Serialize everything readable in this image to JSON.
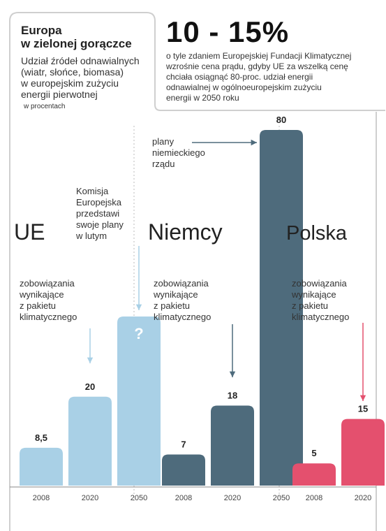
{
  "header": {
    "title_line1": "Europa",
    "title_line2": "w zielonej gorączce",
    "subtitle_lines": [
      "Udział źródeł odnawialnych",
      "(wiatr, słońce, biomasa)",
      "w europejskim zużyciu",
      "energii pierwotnej"
    ],
    "unit": "w procentach",
    "headline": "10 - 15%",
    "headline_note_lines": [
      "o tyle zdaniem Europejskiej Fundacji Klimatycznej",
      "wzrośnie cena prądu, gdyby UE za wszelką cenę",
      "chciała osiągnąć 80-proc. udział energii",
      "odnawialnej w ogólnoeuropejskim zużyciu",
      "energii w 2050 roku"
    ]
  },
  "chart_data": {
    "type": "bar",
    "groups": [
      {
        "name": "UE",
        "color": "#a9d0e6",
        "years": [
          "2008",
          "2020",
          "2050"
        ],
        "values": [
          8.5,
          20,
          null
        ],
        "value_labels": [
          "8,5",
          "20",
          "?"
        ],
        "annotation_lines": [
          "zobowiązania",
          "wynikające",
          "z pakietu",
          "klimatycznego"
        ],
        "note_lines": [
          "Komisja",
          "Europejska",
          "przedstawi",
          "swoje plany",
          "w lutym"
        ]
      },
      {
        "name": "Niemcy",
        "color": "#4e6b7c",
        "years": [
          "2008",
          "2020",
          "2050"
        ],
        "values": [
          7,
          18,
          80
        ],
        "value_labels": [
          "7",
          "18",
          "80"
        ],
        "annotation_lines": [
          "zobowiązania",
          "wynikające",
          "z pakietu",
          "klimatycznego"
        ],
        "note_lines": [
          "plany",
          "niemieckiego",
          "rządu"
        ]
      },
      {
        "name": "Polska",
        "color": "#e4506e",
        "years": [
          "2008",
          "2020"
        ],
        "values": [
          5,
          15
        ],
        "value_labels": [
          "5",
          "15"
        ],
        "annotation_lines": [
          "zobowiązania",
          "wynikające",
          "z pakietu",
          "klimatycznego"
        ],
        "note_lines": []
      }
    ]
  }
}
